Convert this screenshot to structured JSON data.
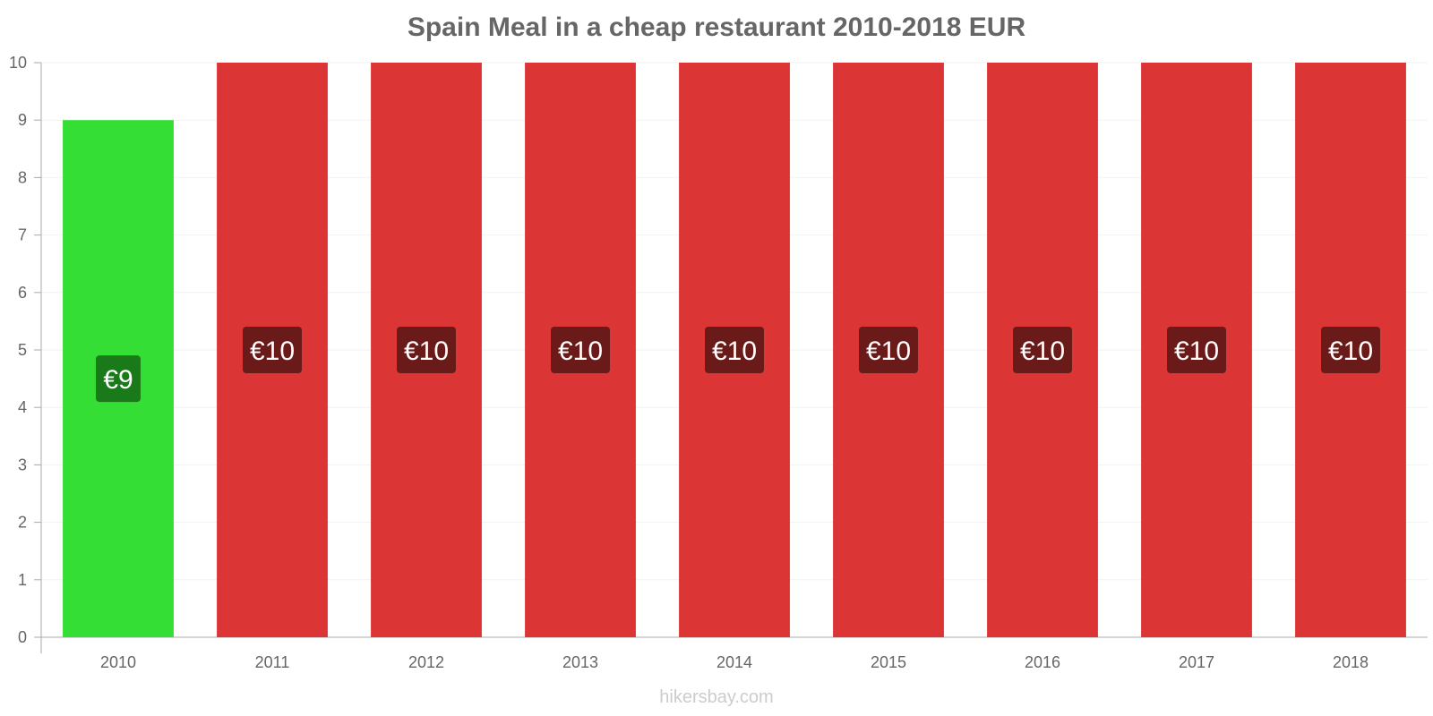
{
  "chart_data": {
    "type": "bar",
    "title": "Spain Meal in a cheap restaurant 2010-2018 EUR",
    "categories": [
      "2010",
      "2011",
      "2012",
      "2013",
      "2014",
      "2015",
      "2016",
      "2017",
      "2018"
    ],
    "values": [
      9,
      10,
      10,
      10,
      10,
      10,
      10,
      10,
      10
    ],
    "data_labels": [
      "€9",
      "€10",
      "€10",
      "€10",
      "€10",
      "€10",
      "€10",
      "€10",
      "€10"
    ],
    "ylim": [
      0,
      10
    ],
    "y_ticks": [
      0,
      1,
      2,
      3,
      4,
      5,
      6,
      7,
      8,
      9,
      10
    ],
    "xlabel": "",
    "ylabel": "",
    "grid": true,
    "legend": "none",
    "colors": {
      "decrease_bar": "#35de35",
      "decrease_label_bg": "#1a7a1a",
      "increase_bar": "#db3535",
      "increase_label_bg": "#6b1a1a",
      "axis": "#aaaaaa",
      "grid": "#f2f2f2",
      "tick_text": "#666666"
    },
    "bar_color_roles": [
      "decrease",
      "increase",
      "increase",
      "increase",
      "increase",
      "increase",
      "increase",
      "increase",
      "increase"
    ]
  },
  "footer": {
    "watermark": "hikersbay.com"
  }
}
